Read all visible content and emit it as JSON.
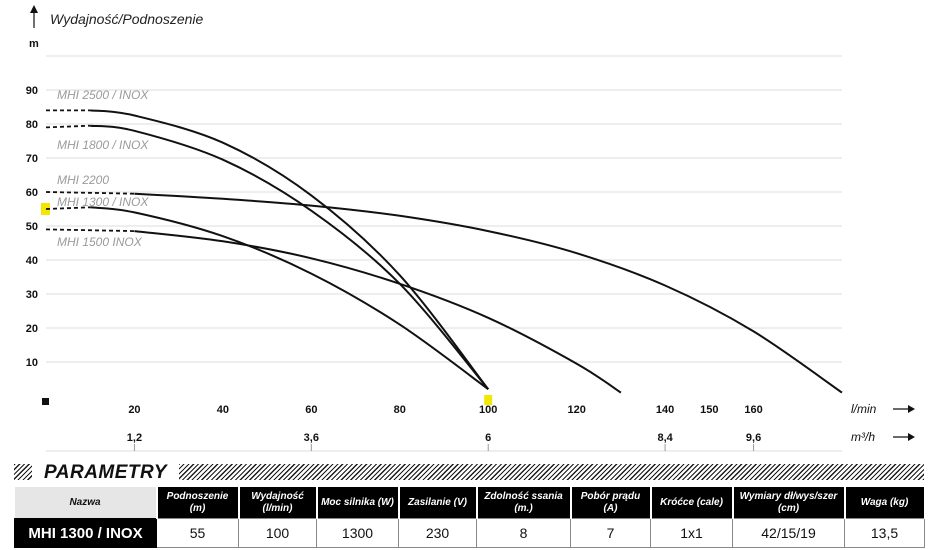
{
  "chart_data": {
    "type": "line",
    "y_title": "Wydajność/Podnoszenie",
    "y_unit": "m",
    "ylim": [
      0,
      100
    ],
    "yticks": [
      10,
      20,
      30,
      40,
      50,
      60,
      70,
      80,
      90
    ],
    "xlim": [
      0,
      180
    ],
    "x_ticks_lmin": [
      20,
      40,
      60,
      80,
      100,
      120,
      140,
      150,
      160
    ],
    "x_unit_lmin": "l/min",
    "x_ticks_m3h": [
      "1,2",
      "3,6",
      "6",
      "8,4",
      "9,6"
    ],
    "x_ticks_m3h_pos": [
      20,
      60,
      100,
      140,
      160
    ],
    "x_unit_m3h": "m³/h",
    "grid": true,
    "highlight": {
      "series": "MHI 1300 / INOX",
      "head_m": 55,
      "flow_lmin": 100,
      "color": "#f3e600"
    },
    "series": [
      {
        "name": "MHI 2500 / INOX",
        "x": [
          0,
          10,
          20,
          40,
          60,
          80,
          100
        ],
        "y": [
          84,
          84,
          82.5,
          74.5,
          59,
          35.5,
          2
        ]
      },
      {
        "name": "MHI 1800 / INOX",
        "x": [
          0,
          10,
          20,
          40,
          60,
          80,
          100
        ],
        "y": [
          79,
          79.5,
          78,
          69.5,
          54.5,
          33,
          2
        ]
      },
      {
        "name": "MHI 2200",
        "x": [
          0,
          20,
          40,
          60,
          80,
          100,
          120,
          140,
          160,
          180
        ],
        "y": [
          60,
          59.5,
          58,
          56,
          53,
          48.5,
          42,
          32.5,
          19,
          1
        ]
      },
      {
        "name": "MHI 1300 / INOX",
        "x": [
          0,
          10,
          20,
          40,
          60,
          80,
          100
        ],
        "y": [
          55,
          55.5,
          54,
          47,
          36,
          21,
          2
        ]
      },
      {
        "name": "MHI 1500 INOX",
        "x": [
          0,
          20,
          40,
          60,
          80,
          100,
          120,
          130
        ],
        "y": [
          49,
          48.5,
          45.5,
          40.5,
          33,
          23,
          9.5,
          1
        ]
      }
    ]
  },
  "parametry": {
    "title": "PARAMETRY",
    "headers": [
      "Nazwa",
      "Podnoszenie (m)",
      "Wydajność (l/min)",
      "Moc silnika (W)",
      "Zasilanie (V)",
      "Zdolność ssania (m.)",
      "Pobór prądu (A)",
      "Króćce (cale)",
      "Wymiary dł/wys/szer (cm)",
      "Waga (kg)"
    ],
    "row": [
      "MHI 1300 / INOX",
      "55",
      "100",
      "1300",
      "230",
      "8",
      "7",
      "1x1",
      "42/15/19",
      "13,5"
    ]
  }
}
